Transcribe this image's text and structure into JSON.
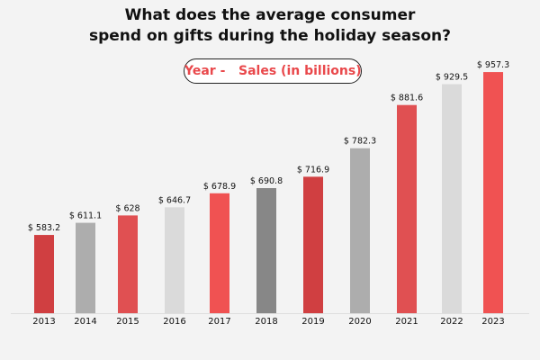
{
  "chart_data": {
    "type": "bar",
    "title": "What does the average consumer spend on gifts during the holiday season?",
    "title_lines": [
      "What does the average consumer",
      "spend on gifts during the holiday season?"
    ],
    "legend": {
      "label_year": "Year -",
      "label_sales": "Sales (in billions)",
      "placement": "top-center"
    },
    "categories": [
      "2013",
      "2014",
      "2015",
      "2016",
      "2017",
      "2018",
      "2019",
      "2020",
      "2021",
      "2022",
      "2023"
    ],
    "values": [
      583.2,
      611.1,
      628,
      646.7,
      678.9,
      690.8,
      716.9,
      782.3,
      881.6,
      929.5,
      957.3
    ],
    "data_labels": [
      "$ 583.2",
      "$ 611.1",
      "$ 628",
      "$ 646.7",
      "$ 678.9",
      "$ 690.8",
      "$ 716.9",
      "$ 782.3",
      "$ 881.6",
      "$ 929.5",
      "$ 957.3"
    ],
    "colors": [
      "#d03f41",
      "#adadad",
      "#e05052",
      "#dadada",
      "#f05252",
      "#878787",
      "#d03f41",
      "#adadad",
      "#e05052",
      "#dadada",
      "#f05252"
    ],
    "grid": false,
    "xlabel": "",
    "ylabel": ""
  }
}
